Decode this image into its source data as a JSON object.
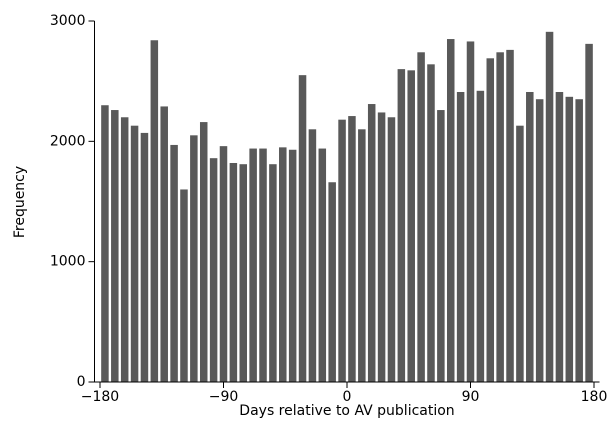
{
  "chart_data": {
    "type": "histogram",
    "xlabel": "Days relative to AV publication",
    "ylabel": "Frequency",
    "bins": [
      -180,
      -172.8,
      -165.6,
      -158.4,
      -151.2,
      -144,
      -136.8,
      -129.6,
      -122.4,
      -115.2,
      -108,
      -100.8,
      -93.6,
      -86.4,
      -79.2,
      -72,
      -64.8,
      -57.6,
      -50.4,
      -43.2,
      -36,
      -28.8,
      -21.6,
      -14.4,
      -7.2,
      0,
      7.2,
      14.4,
      21.6,
      28.8,
      36,
      43.2,
      50.4,
      57.6,
      64.8,
      72,
      79.2,
      86.4,
      93.6,
      100.8,
      108,
      115.2,
      122.4,
      129.6,
      136.8,
      144,
      151.2,
      158.4,
      165.6,
      172.8,
      180
    ],
    "values": [
      2300,
      2260,
      2200,
      2130,
      2070,
      2840,
      2290,
      1970,
      1600,
      2050,
      2160,
      1860,
      1960,
      1820,
      1810,
      1940,
      1940,
      1810,
      1950,
      1930,
      2550,
      2100,
      1940,
      1660,
      2180,
      2210,
      2100,
      2310,
      2240,
      2200,
      2600,
      2590,
      2740,
      2640,
      2260,
      2850,
      2410,
      2830,
      2420,
      2690,
      2740,
      2760,
      2130,
      2410,
      2350,
      2910,
      2410,
      2370,
      2350,
      2810
    ],
    "color": "#595959",
    "xlim": [
      -184,
      184
    ],
    "xticks": [
      {
        "value": -180,
        "label": "−180"
      },
      {
        "value": -90,
        "label": "−90"
      },
      0,
      90,
      180
    ],
    "ylim": [
      0,
      3000
    ],
    "yticks": [
      0,
      1000,
      2000,
      3000
    ]
  }
}
